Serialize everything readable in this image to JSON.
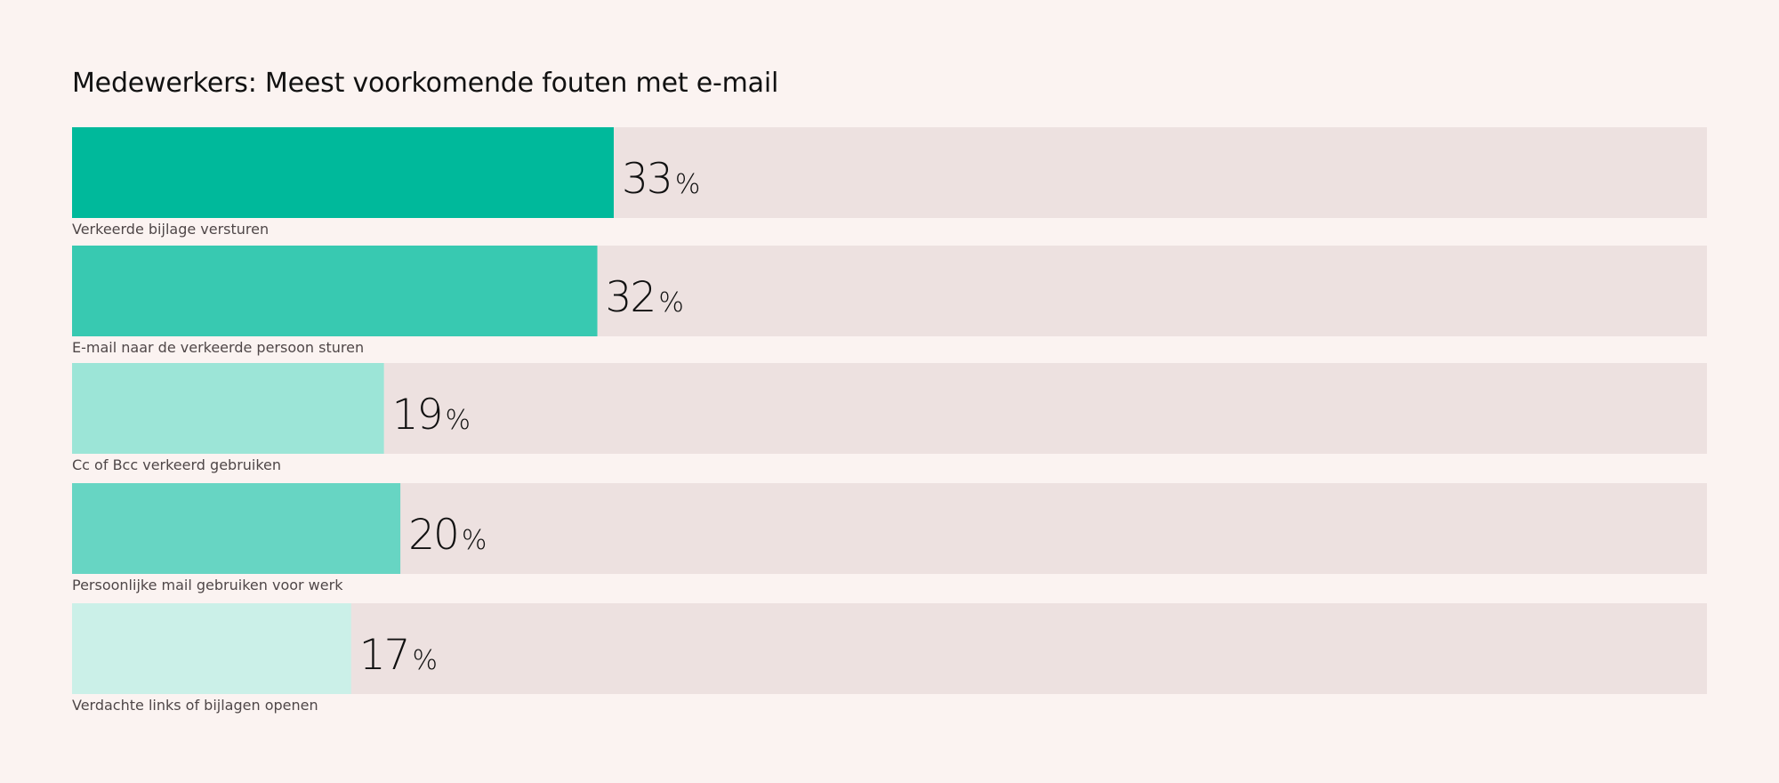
{
  "chart_data": {
    "type": "bar",
    "orientation": "horizontal",
    "title": "Medewerkers: Meest voorkomende fouten met e-mail",
    "categories": [
      "Verkeerde bijlage versturen",
      "E-mail naar de verkeerde persoon sturen",
      "Cc of Bcc verkeerd gebruiken",
      "Persoonlijke mail gebruiken voor werk",
      "Verdachte links of bijlagen openen"
    ],
    "values": [
      33,
      32,
      19,
      20,
      17
    ],
    "value_labels": [
      "33",
      "32",
      "19",
      "20",
      "17"
    ],
    "unit": "%",
    "xlim": [
      0,
      100
    ],
    "grid": false,
    "legend": "none",
    "colors": [
      "#00b99b",
      "#38c9b1",
      "#9ce5d7",
      "#67d5c3",
      "#cbf0e8"
    ],
    "track_color": "#ede1e0"
  }
}
